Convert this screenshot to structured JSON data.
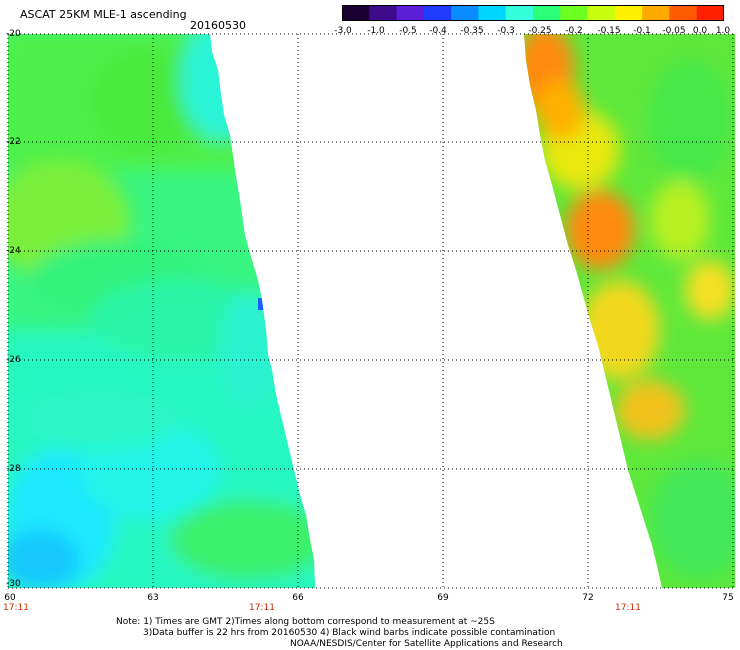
{
  "header": {
    "title": "ASCAT 25KM MLE-1 ascending",
    "date": "20160530"
  },
  "colorbar": {
    "labels": [
      "-3.0",
      "-1.0",
      "-0.5",
      "-0.4",
      "-0.35",
      "-0.3",
      "-0.25",
      "-0.2",
      "-0.15",
      "-0.1",
      "-0.05",
      "0.0",
      "1.0"
    ],
    "colors": [
      "#1a0033",
      "#3d0a8a",
      "#5a1fd6",
      "#1f3cff",
      "#0a8cff",
      "#00d6ff",
      "#33ffdd",
      "#2cff7a",
      "#6eff22",
      "#c8ff10",
      "#fff000",
      "#ffaa00",
      "#ff5a00",
      "#ff2000"
    ]
  },
  "axes": {
    "y_labels": [
      "-20",
      "-22",
      "-24",
      "-26",
      "-28",
      "-30"
    ],
    "x_labels": [
      "60",
      "63",
      "66",
      "69",
      "72",
      "75"
    ],
    "time_labels": [
      "17:11",
      "17:11",
      "17:11"
    ]
  },
  "footer": {
    "line1": "Note: 1) Times are GMT 2)Times along bottom correspond to measurement at ~25S",
    "line2": "3)Data buffer is 22 hrs from 20160530 4) Black wind barbs indicate possible contamination",
    "line3": "NOAA/NESDIS/Center for Satellite Applications and Research"
  }
}
